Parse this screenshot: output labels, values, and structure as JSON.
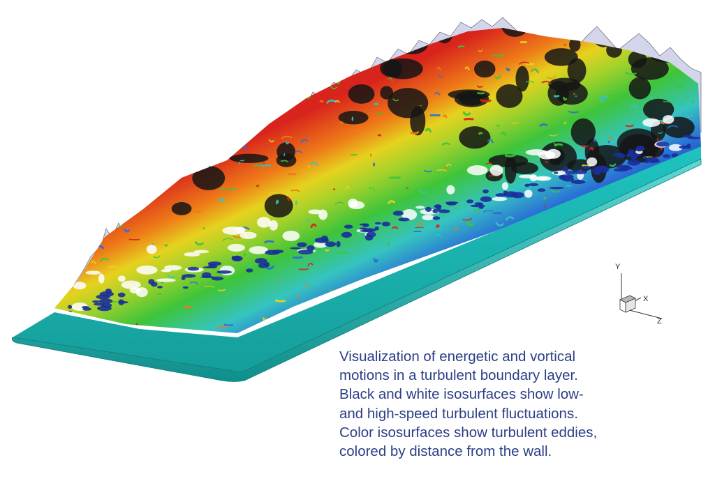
{
  "visualization": {
    "subject": "turbulent-boundary-layer",
    "wall_color": "#19b3b0",
    "colors": {
      "low_speed": "#151515",
      "high_speed": "#ffffff",
      "outer": "#c9cde6",
      "wall_near": "#1a2f9a",
      "eddy_blue": "#2a6fd6",
      "eddy_cyan": "#35c4c0",
      "eddy_green": "#3ec43a",
      "eddy_yellow": "#e6d21e",
      "eddy_orange": "#ee7a18",
      "eddy_red": "#d8241c"
    }
  },
  "axes": {
    "y": "Y",
    "x": "X",
    "z": "Z"
  },
  "caption": {
    "lines": [
      "Visualization of energetic and vortical",
      "motions in a turbulent boundary layer.",
      "Black and white isosurfaces show low-",
      "and high-speed turbulent fluctuations.",
      "Color isosurfaces show turbulent eddies,",
      "colored by distance from the wall."
    ]
  }
}
